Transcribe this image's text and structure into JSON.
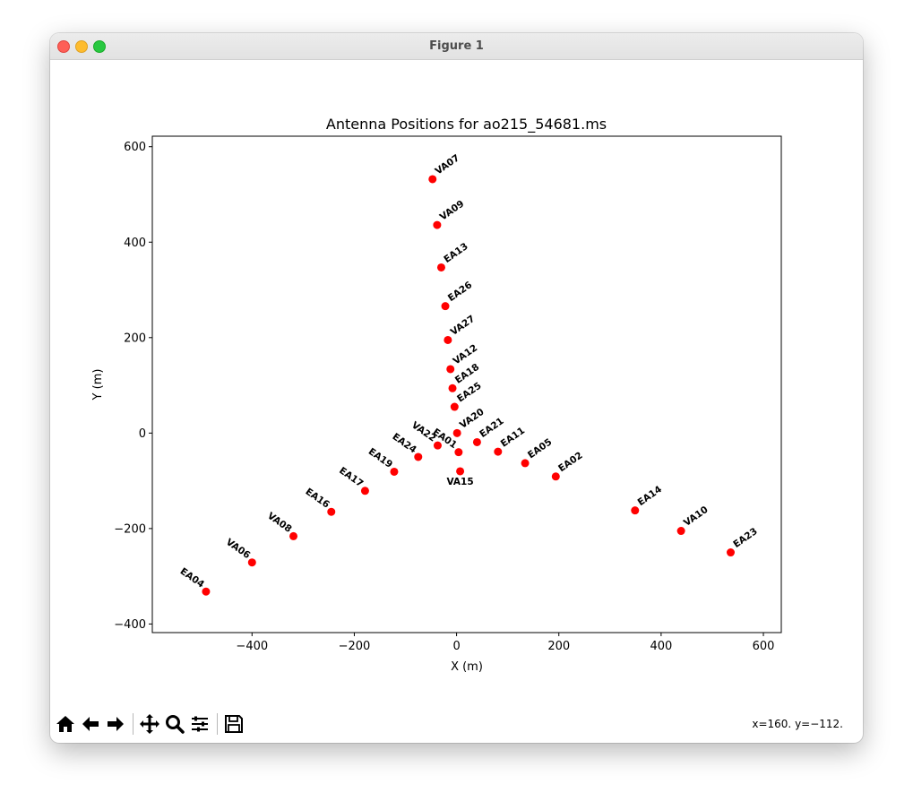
{
  "window": {
    "title": "Figure 1",
    "coords_readout": "x=160. y=−112."
  },
  "toolbar": [
    {
      "name": "home-icon",
      "tooltip": "Home"
    },
    {
      "name": "back-icon",
      "tooltip": "Back"
    },
    {
      "name": "forward-icon",
      "tooltip": "Forward"
    },
    {
      "name": "pan-icon",
      "tooltip": "Pan"
    },
    {
      "name": "zoom-icon",
      "tooltip": "Zoom"
    },
    {
      "name": "configure-subplots-icon",
      "tooltip": "Configure subplots"
    },
    {
      "name": "save-icon",
      "tooltip": "Save"
    }
  ],
  "chart_data": {
    "type": "scatter",
    "title": "Antenna Positions for ao215_54681.ms",
    "xlabel": "X (m)",
    "ylabel": "Y (m)",
    "xlim": [
      -595,
      635
    ],
    "ylim": [
      -418,
      622
    ],
    "xticks": [
      -400,
      -200,
      0,
      200,
      400,
      600
    ],
    "yticks": [
      -400,
      -200,
      0,
      200,
      400,
      600
    ],
    "xtick_labels": [
      "−400",
      "−200",
      "0",
      "200",
      "400",
      "600"
    ],
    "ytick_labels": [
      "−400",
      "−200",
      "0",
      "200",
      "400",
      "600"
    ],
    "grid": false,
    "marker_color": "#ff0000",
    "label_color": "#000000",
    "points": [
      {
        "name": "VA07",
        "x": -47,
        "y": 532,
        "label_style": "up-right"
      },
      {
        "name": "VA09",
        "x": -38,
        "y": 436,
        "label_style": "up-right"
      },
      {
        "name": "EA13",
        "x": -30,
        "y": 347,
        "label_style": "up-right"
      },
      {
        "name": "EA26",
        "x": -22,
        "y": 266,
        "label_style": "up-right"
      },
      {
        "name": "VA27",
        "x": -17,
        "y": 195,
        "label_style": "up-right"
      },
      {
        "name": "VA12",
        "x": -12,
        "y": 134,
        "label_style": "up-right"
      },
      {
        "name": "EA18",
        "x": -8,
        "y": 94,
        "label_style": "up-right"
      },
      {
        "name": "EA25",
        "x": -4,
        "y": 55,
        "label_style": "up-right"
      },
      {
        "name": "VA20",
        "x": 1,
        "y": 0,
        "label_style": "up-right"
      },
      {
        "name": "EA21",
        "x": 40,
        "y": -19,
        "label_style": "up-right"
      },
      {
        "name": "EA11",
        "x": 81,
        "y": -39,
        "label_style": "up-right"
      },
      {
        "name": "EA05",
        "x": 134,
        "y": -63,
        "label_style": "up-right"
      },
      {
        "name": "EA02",
        "x": 194,
        "y": -91,
        "label_style": "up-right"
      },
      {
        "name": "EA14",
        "x": 349,
        "y": -162,
        "label_style": "up-right"
      },
      {
        "name": "VA10",
        "x": 439,
        "y": -205,
        "label_style": "up-right"
      },
      {
        "name": "EA23",
        "x": 536,
        "y": -250,
        "label_style": "up-right"
      },
      {
        "name": "VA22",
        "x": -37,
        "y": -26,
        "label_style": "up-left"
      },
      {
        "name": "EA01",
        "x": 4,
        "y": -40,
        "label_style": "up-left"
      },
      {
        "name": "VA15",
        "x": 7,
        "y": -80,
        "label_style": "below"
      },
      {
        "name": "EA24",
        "x": -75,
        "y": -50,
        "label_style": "up-left"
      },
      {
        "name": "EA19",
        "x": -122,
        "y": -81,
        "label_style": "up-left"
      },
      {
        "name": "EA17",
        "x": -179,
        "y": -121,
        "label_style": "up-left"
      },
      {
        "name": "EA16",
        "x": -245,
        "y": -165,
        "label_style": "up-left"
      },
      {
        "name": "VA08",
        "x": -319,
        "y": -216,
        "label_style": "up-left"
      },
      {
        "name": "VA06",
        "x": -400,
        "y": -271,
        "label_style": "up-left"
      },
      {
        "name": "EA04",
        "x": -490,
        "y": -332,
        "label_style": "up-left"
      }
    ]
  }
}
